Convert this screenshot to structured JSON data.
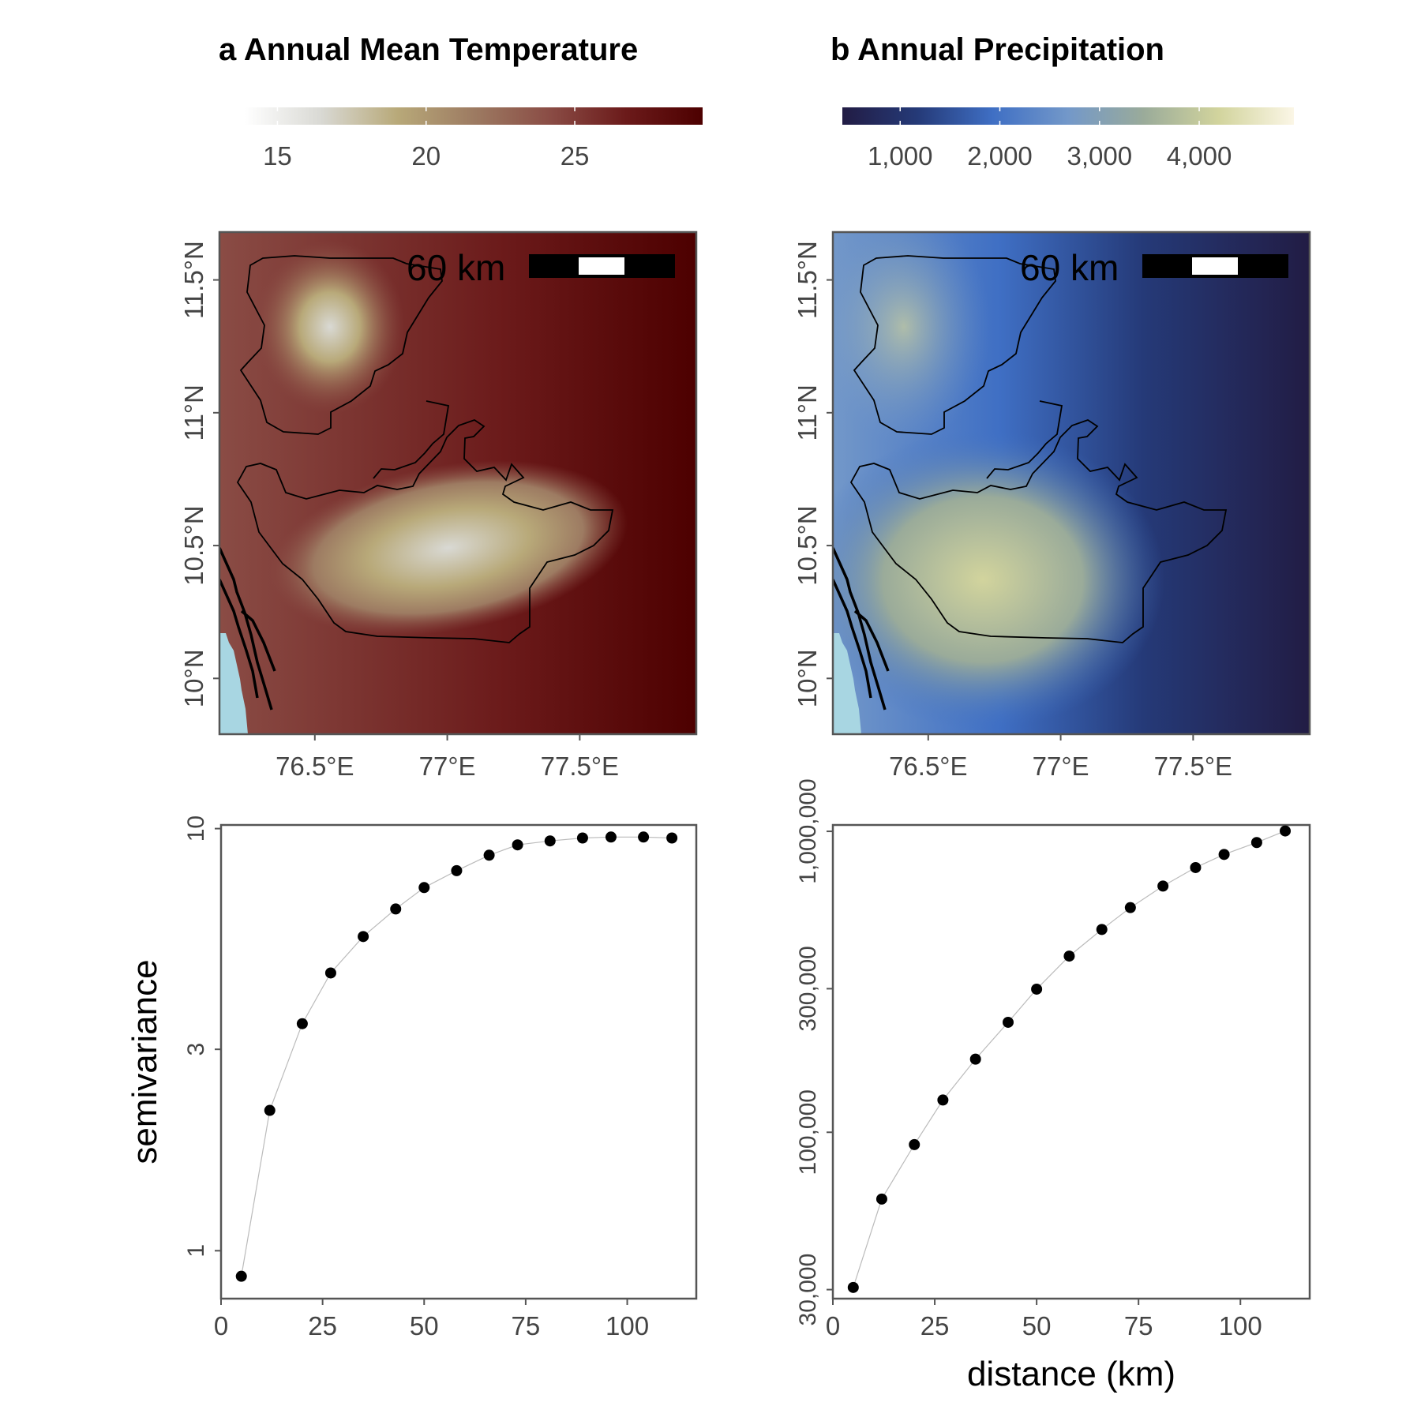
{
  "colors": {
    "temp_ramp": [
      "#ffffff",
      "#d9d9d4",
      "#b8a979",
      "#9d7b62",
      "#8a4c45",
      "#6b1a1a",
      "#4d0000"
    ],
    "precip_ramp": [
      "#221c44",
      "#253a78",
      "#3f6fc4",
      "#7398c9",
      "#9aab9a",
      "#d2d49d",
      "#fbf6e6"
    ],
    "water": "#a8d6e2",
    "point": "#000000",
    "line": "#bbbbbb"
  },
  "chart_data": [
    {
      "type": "heatmap",
      "title": "a Annual Mean Temperature",
      "legend": {
        "ticks": [
          15,
          20,
          25
        ],
        "tick_labels": [
          "15",
          "20",
          "25"
        ],
        "range": [
          13.9,
          29.3
        ],
        "placement": "top"
      },
      "x_ticks": [
        "76.5°E",
        "77°E",
        "77.5°E"
      ],
      "y_ticks": [
        "10°N",
        "10.5°N",
        "11°N",
        "11.5°N"
      ],
      "xlim": [
        76.14,
        77.94
      ],
      "ylim": [
        9.79,
        11.68
      ],
      "scalebar_label": "60 km",
      "color_ramp_key": "temp_ramp"
    },
    {
      "type": "heatmap",
      "title": "b Annual Precipitation",
      "legend": {
        "ticks": [
          1000,
          2000,
          3000,
          4000
        ],
        "tick_labels": [
          "1,000",
          "2,000",
          "3,000",
          "4,000"
        ],
        "range": [
          420,
          4950
        ],
        "placement": "top"
      },
      "x_ticks": [
        "76.5°E",
        "77°E",
        "77.5°E"
      ],
      "y_ticks": [
        "10°N",
        "10.5°N",
        "11°N",
        "11.5°N"
      ],
      "xlim": [
        76.14,
        77.94
      ],
      "ylim": [
        9.79,
        11.68
      ],
      "scalebar_label": "60 km",
      "color_ramp_key": "precip_ramp"
    },
    {
      "type": "scatter",
      "xlabel": "",
      "ylabel": "semivariance",
      "xlim": [
        0,
        117
      ],
      "ylim": [
        0.77,
        10.2
      ],
      "y_scale": "log",
      "x_ticks": [
        0,
        25,
        50,
        75,
        100
      ],
      "y_ticks": [
        1,
        3,
        10
      ],
      "x": [
        5,
        12,
        20,
        27,
        35,
        43,
        50,
        58,
        66,
        73,
        81,
        89,
        96,
        104,
        111
      ],
      "y": [
        0.87,
        2.15,
        3.45,
        4.55,
        5.55,
        6.45,
        7.25,
        7.95,
        8.65,
        9.15,
        9.35,
        9.5,
        9.55,
        9.55,
        9.5
      ]
    },
    {
      "type": "scatter",
      "xlabel": "distance (km)",
      "ylabel": "",
      "xlim": [
        0,
        117
      ],
      "ylim": [
        28000,
        1050000
      ],
      "y_scale": "log",
      "x_ticks": [
        0,
        25,
        50,
        75,
        100
      ],
      "y_ticks": [
        30000,
        100000,
        300000,
        1000000
      ],
      "y_tick_labels": [
        "30,000",
        "100,000",
        "300,000",
        "1,000,000"
      ],
      "x": [
        5,
        12,
        20,
        27,
        35,
        43,
        50,
        58,
        66,
        73,
        81,
        89,
        96,
        104,
        111
      ],
      "y": [
        30500,
        60000,
        91000,
        128000,
        175000,
        232000,
        299000,
        385000,
        472000,
        558000,
        658000,
        758000,
        838000,
        918000,
        1003000
      ]
    }
  ]
}
